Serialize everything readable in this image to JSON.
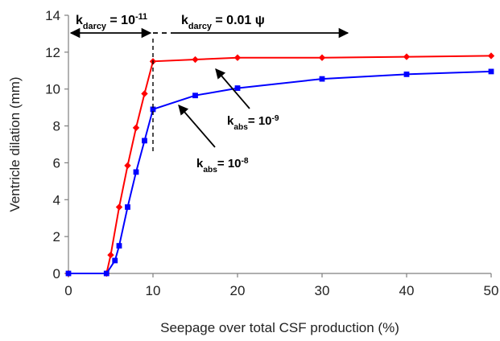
{
  "chart_data": {
    "type": "line",
    "title": "",
    "xlabel": "Seepage over total CSF production (%)",
    "ylabel": "Ventricle dilation (mm)",
    "xlim": [
      0,
      50
    ],
    "ylim": [
      0,
      14
    ],
    "xticks": [
      0,
      10,
      20,
      30,
      40,
      50
    ],
    "yticks": [
      0,
      2,
      4,
      6,
      8,
      10,
      12,
      14
    ],
    "grid": false,
    "series": [
      {
        "name": "",
        "color": "#ff0000",
        "marker": "diamond",
        "x": [
          0,
          4.5,
          5,
          6,
          7,
          8,
          9,
          10,
          15,
          20,
          30,
          40,
          50
        ],
        "y": [
          0,
          0,
          1.0,
          3.6,
          5.85,
          7.9,
          9.75,
          11.5,
          11.6,
          11.7,
          11.7,
          11.75,
          11.8
        ]
      },
      {
        "name": "",
        "color": "#0000ff",
        "marker": "square",
        "x": [
          0,
          4.5,
          5.5,
          6,
          7,
          8,
          9,
          10,
          15,
          20,
          30,
          40,
          50
        ],
        "y": [
          0,
          0,
          0.7,
          1.5,
          3.6,
          5.5,
          7.2,
          8.9,
          9.65,
          10.05,
          10.55,
          10.8,
          10.95
        ]
      }
    ],
    "annotations": {
      "kdarcy_left": {
        "base": "k",
        "sub": "darcy",
        "mid": " = 10",
        "sup": "-11"
      },
      "kdarcy_right": {
        "base": "k",
        "sub": "darcy",
        "mid": " = 0.01 ψ"
      },
      "kabs_upper": {
        "base": "k",
        "sub": "abs",
        "mid": "= 10",
        "sup": "-9"
      },
      "kabs_lower": {
        "base": "k",
        "sub": "abs",
        "mid": "= 10",
        "sup": "-8"
      }
    },
    "arrow_colors": {
      "line": "#000000"
    }
  }
}
